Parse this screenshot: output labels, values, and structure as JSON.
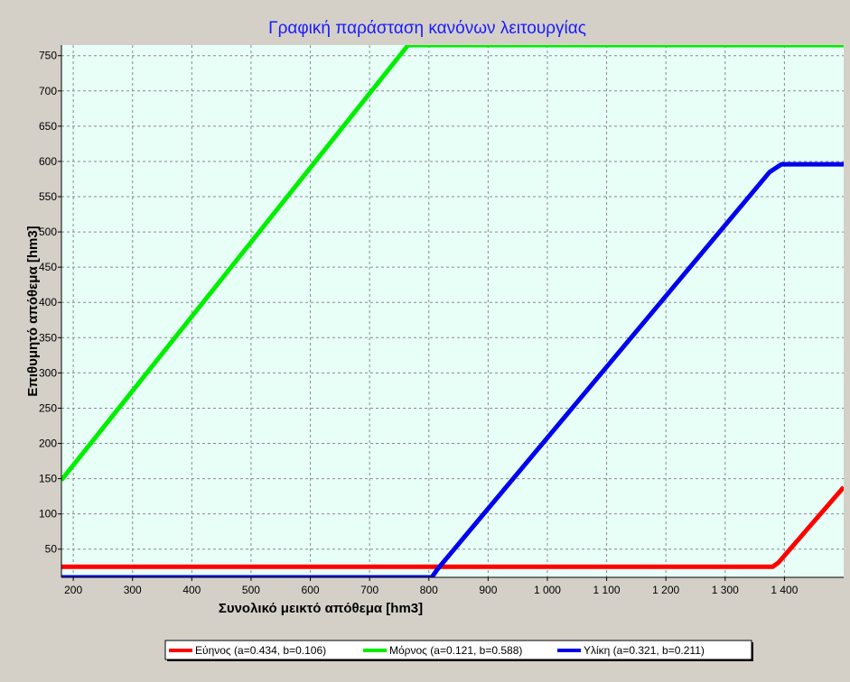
{
  "chart_data": {
    "type": "line",
    "title": "Γραφική παράσταση κανόνων λειτουργίας",
    "xlabel": "Συνολικό μεικτό απόθεμα [hm3]",
    "ylabel": "Επιθυμητό απόθεμα [hm3]",
    "xlim": [
      180,
      1500
    ],
    "ylim": [
      10,
      765
    ],
    "x_ticks": [
      200,
      300,
      400,
      500,
      600,
      700,
      800,
      900,
      1000,
      1100,
      1200,
      1300,
      1400
    ],
    "x_tick_labels": [
      "200",
      "300",
      "400",
      "500",
      "600",
      "700",
      "800",
      "900",
      "1 000",
      "1 100",
      "1 200",
      "1 300",
      "1 400"
    ],
    "y_ticks": [
      50,
      100,
      150,
      200,
      250,
      300,
      350,
      400,
      450,
      500,
      550,
      600,
      650,
      700,
      750
    ],
    "y_tick_labels": [
      "50",
      "100",
      "150",
      "200",
      "250",
      "300",
      "350",
      "400",
      "450",
      "500",
      "550",
      "600",
      "650",
      "700",
      "750"
    ],
    "grid": true,
    "legend_position": "bottom",
    "plot_background": "#e8fff8",
    "series": [
      {
        "name": "Εύηνος (a=0.434, b=0.106)",
        "color": "#ff0000",
        "points": [
          [
            180,
            25
          ],
          [
            1380,
            25
          ],
          [
            1390,
            31
          ],
          [
            1500,
            138
          ]
        ]
      },
      {
        "name": "Μόρνος (a=0.121, b=0.588)",
        "color": "#00ee00",
        "points": [
          [
            180,
            148
          ],
          [
            765,
            765
          ],
          [
            1500,
            765
          ]
        ]
      },
      {
        "name": "Υλίκη (a=0.321, b=0.211)",
        "color": "#0000ee",
        "points": [
          [
            180,
            10
          ],
          [
            805,
            10
          ],
          [
            815,
            22
          ],
          [
            1375,
            585
          ],
          [
            1395,
            596
          ],
          [
            1500,
            596
          ]
        ]
      }
    ]
  }
}
